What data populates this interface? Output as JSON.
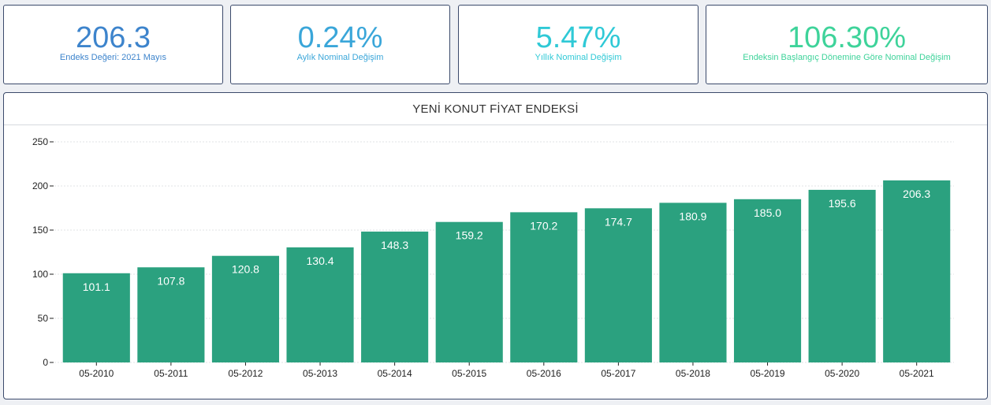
{
  "kpis": [
    {
      "value": "206.3",
      "label": "Endeks Değeri: 2021 Mayıs",
      "color": "#3d84cc"
    },
    {
      "value": "0.24%",
      "label": "Aylık Nominal Değişim",
      "color": "#3aa6d9"
    },
    {
      "value": "5.47%",
      "label": "Yıllık Nominal Değişim",
      "color": "#2fc9d6"
    },
    {
      "value": "106.30%",
      "label": "Endeksin Başlangıç Dönemine Göre Nominal Değişim",
      "color": "#3ed39a"
    }
  ],
  "chart_title": "YENİ KONUT FİYAT ENDEKSİ",
  "chart_data": {
    "type": "bar",
    "title": "YENİ KONUT FİYAT ENDEKSİ",
    "xlabel": "",
    "ylabel": "",
    "categories": [
      "05-2010",
      "05-2011",
      "05-2012",
      "05-2013",
      "05-2014",
      "05-2015",
      "05-2016",
      "05-2017",
      "05-2018",
      "05-2019",
      "05-2020",
      "05-2021"
    ],
    "values": [
      101.1,
      107.8,
      120.8,
      130.4,
      148.3,
      159.2,
      170.2,
      174.7,
      180.9,
      185.0,
      195.6,
      206.3
    ],
    "value_labels": [
      "101.1",
      "107.8",
      "120.8",
      "130.4",
      "148.3",
      "159.2",
      "170.2",
      "174.7",
      "180.9",
      "185.0",
      "195.6",
      "206.3"
    ],
    "ylim": [
      0,
      250
    ],
    "yticks": [
      0,
      50,
      100,
      150,
      200,
      250
    ],
    "grid": true,
    "bar_color": "#2ba17f"
  }
}
